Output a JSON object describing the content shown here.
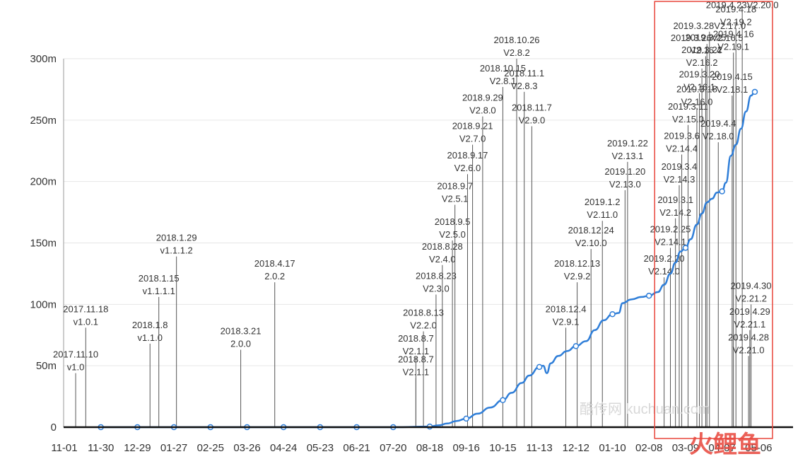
{
  "chart_data": {
    "type": "line",
    "title": "",
    "xlabel": "",
    "ylabel": "",
    "x_ticks": [
      "11-01",
      "11-30",
      "12-29",
      "01-27",
      "02-25",
      "03-26",
      "04-24",
      "05-23",
      "06-21",
      "07-20",
      "08-18",
      "09-16",
      "10-15",
      "11-13",
      "12-12",
      "01-10",
      "02-08",
      "03-09",
      "04-07",
      "05-06"
    ],
    "y_ticks": [
      "0",
      "50m",
      "100m",
      "150m",
      "200m",
      "250m",
      "300m"
    ],
    "y_ticks_values": [
      0,
      50,
      100,
      150,
      200,
      250,
      300
    ],
    "ylim": [
      0,
      300
    ],
    "grid": "horizontal",
    "series": [
      {
        "values_by_date": [
          [
            "2017-11-30",
            0
          ],
          [
            "2017-12-29",
            0
          ],
          [
            "2018-01-27",
            0
          ],
          [
            "2018-02-25",
            0
          ],
          [
            "2018-03-26",
            0
          ],
          [
            "2018-04-24",
            0
          ],
          [
            "2018-05-23",
            0
          ],
          [
            "2018-06-21",
            0
          ],
          [
            "2018-07-20",
            0
          ],
          [
            "2018-08-18",
            0.5
          ],
          [
            "2018-08-25",
            1.5
          ],
          [
            "2018-09-01",
            3
          ],
          [
            "2018-09-08",
            5
          ],
          [
            "2018-09-16",
            7
          ],
          [
            "2018-09-25",
            11
          ],
          [
            "2018-10-05",
            16
          ],
          [
            "2018-10-15",
            22
          ],
          [
            "2018-10-22",
            28
          ],
          [
            "2018-10-30",
            36
          ],
          [
            "2018-11-05",
            42
          ],
          [
            "2018-11-13",
            49
          ],
          [
            "2018-11-16",
            50
          ],
          [
            "2018-11-19",
            44
          ],
          [
            "2018-11-22",
            52
          ],
          [
            "2018-11-28",
            58
          ],
          [
            "2018-12-05",
            62
          ],
          [
            "2018-12-12",
            66
          ],
          [
            "2018-12-20",
            70
          ],
          [
            "2018-12-27",
            79
          ],
          [
            "2019-01-03",
            87
          ],
          [
            "2019-01-10",
            92
          ],
          [
            "2019-01-15",
            93
          ],
          [
            "2019-01-18",
            101
          ],
          [
            "2019-01-25",
            104
          ],
          [
            "2019-02-02",
            106
          ],
          [
            "2019-02-08",
            107
          ],
          [
            "2019-02-15",
            110
          ],
          [
            "2019-02-20",
            116
          ],
          [
            "2019-02-25",
            125
          ],
          [
            "2019-03-01",
            134
          ],
          [
            "2019-03-05",
            143
          ],
          [
            "2019-03-09",
            146
          ],
          [
            "2019-03-13",
            153
          ],
          [
            "2019-03-18",
            165
          ],
          [
            "2019-03-22",
            174
          ],
          [
            "2019-03-26",
            183
          ],
          [
            "2019-03-30",
            186
          ],
          [
            "2019-04-03",
            191
          ],
          [
            "2019-04-07",
            192
          ],
          [
            "2019-04-10",
            199
          ],
          [
            "2019-04-14",
            221
          ],
          [
            "2019-04-18",
            230
          ],
          [
            "2019-04-22",
            243
          ],
          [
            "2019-04-26",
            257
          ],
          [
            "2019-04-30",
            270
          ],
          [
            "2019-05-03",
            273
          ]
        ],
        "markers": [
          "2017-11-30",
          "2017-12-29",
          "2018-01-27",
          "2018-02-25",
          "2018-03-26",
          "2018-04-24",
          "2018-05-23",
          "2018-06-21",
          "2018-07-20",
          "2018-08-18",
          "2018-09-16",
          "2018-10-15",
          "2018-11-13",
          "2018-12-12",
          "2019-01-10",
          "2019-02-08",
          "2019-03-09",
          "2019-04-07",
          "2019-05-03"
        ],
        "color": "#2f7ed8"
      }
    ],
    "annotations": [
      {
        "date": "2017-11-10",
        "top_value": 44,
        "lines": [
          "2017.11.10",
          "v1.0"
        ]
      },
      {
        "date": "2017-11-18",
        "top_value": 81,
        "lines": [
          "2017.11.18",
          "v1.0.1"
        ]
      },
      {
        "date": "2018-01-08",
        "top_value": 68,
        "lines": [
          "2018.1.8",
          "v1.1.0"
        ]
      },
      {
        "date": "2018-01-15",
        "top_value": 106,
        "lines": [
          "2018.1.15",
          "v1.1.1.1"
        ]
      },
      {
        "date": "2018-01-29",
        "top_value": 139,
        "lines": [
          "2018.1.29",
          "v1.1.1.2"
        ]
      },
      {
        "date": "2018-03-21",
        "top_value": 63,
        "lines": [
          "2018.3.21",
          "2.0.0"
        ]
      },
      {
        "date": "2018-04-17",
        "top_value": 118,
        "lines": [
          "2018.4.17",
          "2.0.2"
        ]
      },
      {
        "date": "2018-08-07",
        "top_value": 40,
        "lines": [
          "2018.8.7",
          "V2.1.1"
        ]
      },
      {
        "date": "2018-08-07",
        "top_value": 57,
        "lines": [
          "2018.8.7",
          "V2.1.1"
        ]
      },
      {
        "date": "2018-08-13",
        "top_value": 78,
        "lines": [
          "2018.8.13",
          "V2.2.0"
        ]
      },
      {
        "date": "2018-08-23",
        "top_value": 108,
        "lines": [
          "2018.8.23",
          "V2.3.0"
        ]
      },
      {
        "date": "2018-08-28",
        "top_value": 132,
        "lines": [
          "2018.8.28",
          "V2.4.0"
        ]
      },
      {
        "date": "2018-09-05",
        "top_value": 152,
        "lines": [
          "2018.9.5",
          "V2.5.0"
        ]
      },
      {
        "date": "2018-09-07",
        "top_value": 181,
        "lines": [
          "2018.9.7",
          "V2.5.1"
        ]
      },
      {
        "date": "2018-09-17",
        "top_value": 206,
        "lines": [
          "2018.9.17",
          "V2.6.0"
        ]
      },
      {
        "date": "2018-09-21",
        "top_value": 230,
        "lines": [
          "2018.9.21",
          "V2.7.0"
        ]
      },
      {
        "date": "2018-09-29",
        "top_value": 253,
        "lines": [
          "2018.9.29",
          "V2.8.0"
        ]
      },
      {
        "date": "2018-10-15",
        "top_value": 277,
        "lines": [
          "2018.10.15",
          "V2.8.1"
        ]
      },
      {
        "date": "2018-10-26",
        "top_value": 300,
        "lines": [
          "2018.10.26",
          "V2.8.2"
        ]
      },
      {
        "date": "2018-11-01",
        "top_value": 273,
        "lines": [
          "2018.11.1",
          "V2.8.3"
        ]
      },
      {
        "date": "2018-11-07",
        "top_value": 245,
        "lines": [
          "2018.11.7",
          "V2.9.0"
        ]
      },
      {
        "date": "2018-12-04",
        "top_value": 81,
        "lines": [
          "2018.12.4",
          "V2.9.1"
        ]
      },
      {
        "date": "2018-12-13",
        "top_value": 118,
        "lines": [
          "2018.12.13",
          "V2.9.2"
        ]
      },
      {
        "date": "2018-12-24",
        "top_value": 145,
        "lines": [
          "2018.12.24",
          "V2.10.0"
        ]
      },
      {
        "date": "2019-01-02",
        "top_value": 168,
        "lines": [
          "2019.1.2",
          "V2.11.0"
        ]
      },
      {
        "date": "2019-01-20",
        "top_value": 193,
        "lines": [
          "2019.1.20",
          "V2.13.0"
        ]
      },
      {
        "date": "2019-01-22",
        "top_value": 216,
        "lines": [
          "2019.1.22",
          "V2.13.1"
        ]
      },
      {
        "date": "2019-02-20",
        "top_value": 122,
        "lines": [
          "2019.2.20",
          "V2.14.0"
        ]
      },
      {
        "date": "2019-02-25",
        "top_value": 146,
        "lines": [
          "2019.2.25",
          "V2.14.1"
        ]
      },
      {
        "date": "2019-03-01",
        "top_value": 170,
        "lines": [
          "2019.3.1",
          "V2.14.2"
        ]
      },
      {
        "date": "2019-03-04",
        "top_value": 197,
        "lines": [
          "2019.3.4",
          "V2.14.3"
        ]
      },
      {
        "date": "2019-03-06",
        "top_value": 222,
        "lines": [
          "2019.3.6",
          "V2.14.4"
        ]
      },
      {
        "date": "2019-03-11",
        "top_value": 246,
        "lines": [
          "2019.3.11",
          "V2.15.0"
        ]
      },
      {
        "date": "2019-03-18",
        "top_value": 260,
        "lines": [
          "2019.3.18",
          "V2.16.0"
        ]
      },
      {
        "date": "2019-03-20",
        "top_value": 272,
        "lines": [
          "2019.3.20",
          "V2.16.1"
        ]
      },
      {
        "date": "2019-03-22",
        "top_value": 292,
        "lines": [
          "2019.3.22",
          "V2.16.2"
        ]
      },
      {
        "date": "2019-03-25",
        "top_value": 302,
        "lines": [
          "2019.3.25",
          "V2.16.4"
        ]
      },
      {
        "date": "2019-03-26",
        "top_value": 312,
        "lines": [
          "2019.3.26V2.16.5"
        ]
      },
      {
        "date": "2019-03-28",
        "top_value": 322,
        "lines": [
          "2019.3.28V2.17.0"
        ]
      },
      {
        "date": "2019-04-04",
        "top_value": 232,
        "lines": [
          "2019.4.4",
          "V2.18.0"
        ]
      },
      {
        "date": "2019-04-15",
        "top_value": 270,
        "lines": [
          "2019.4.15",
          "V2.18.1"
        ]
      },
      {
        "date": "2019-04-16",
        "top_value": 305,
        "lines": [
          "2019.4.16",
          "V2.19.1"
        ]
      },
      {
        "date": "2019-04-18",
        "top_value": 325,
        "lines": [
          "2019.4.18",
          "V2.19.2"
        ]
      },
      {
        "date": "2019-04-23",
        "top_value": 339,
        "lines": [
          "2019.4.23V2.20.0"
        ]
      },
      {
        "date": "2019-04-28",
        "top_value": 58,
        "lines": [
          "2019.4.28",
          "V2.21.0"
        ]
      },
      {
        "date": "2019-04-29",
        "top_value": 79,
        "lines": [
          "2019.4.29",
          "V2.21.1"
        ]
      },
      {
        "date": "2019-04-30",
        "top_value": 100,
        "lines": [
          "2019.4.30",
          "V2.21.2"
        ]
      }
    ],
    "watermark": "酷传网 kuchuan.com",
    "logo_text": "火鲤鱼",
    "highlight_color": "#e8463c",
    "highlight_range": [
      "2019-02-08",
      "2019-05-17"
    ]
  }
}
